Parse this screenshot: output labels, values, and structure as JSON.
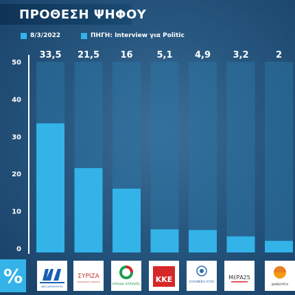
{
  "header": {
    "title": "ΠΡΟΘΕΣΗ ΨΗΦΟΥ"
  },
  "legend": [
    {
      "label": "8/3/2022"
    },
    {
      "label": "ΠΗΓΗ: Interview για Politic"
    }
  ],
  "colors": {
    "bar": "#33b3e8",
    "bar_track": "#2c72a3",
    "text": "#ffffff"
  },
  "percent_symbol": "%",
  "chart_data": {
    "type": "bar",
    "categories": [
      "ΝΔ",
      "ΣΥΡΙΖΑ",
      "Κίνημα Αλλαγής",
      "ΚΚΕ",
      "Ελληνική Λύση",
      "ΜέΡΑ25",
      "Δημιουργία"
    ],
    "values": [
      33.5,
      21.5,
      16,
      5.1,
      4.9,
      3.2,
      2
    ],
    "value_labels": [
      "33,5",
      "21,5",
      "16",
      "5,1",
      "4,9",
      "3,2",
      "2"
    ],
    "y_ticks": [
      0,
      10,
      20,
      30,
      40,
      50
    ],
    "ylim": [
      0,
      50
    ],
    "grid": false,
    "legend_position": "top-left"
  },
  "logos": [
    {
      "icon": "nd-logo-icon",
      "text": "ΝΔ",
      "subtext": "ΝΕΑ ΔΗΜΟΚΡΑΤΙΑ"
    },
    {
      "icon": "syriza-logo-icon",
      "text": "ΣΥΡΙΖΑ",
      "subtext": "ΠΡΟΟΔΕΥΤΙΚΗ ΣΥΜΜΑΧΙΑ"
    },
    {
      "icon": "kinal-logo-icon",
      "text": "κίνημα αλλαγής"
    },
    {
      "icon": "kke-logo-icon",
      "text": "ΚΚΕ"
    },
    {
      "icon": "elliniki-lysi-logo-icon",
      "text": "ΕΛΛΗΝΙΚΗ ΛΥΣΗ"
    },
    {
      "icon": "mera25-logo-icon",
      "text": "ΜέΡΑ25"
    },
    {
      "icon": "dimiourgia-logo-icon",
      "text": "ΔΗΜΙΟΥΡΓΙΑ"
    }
  ]
}
